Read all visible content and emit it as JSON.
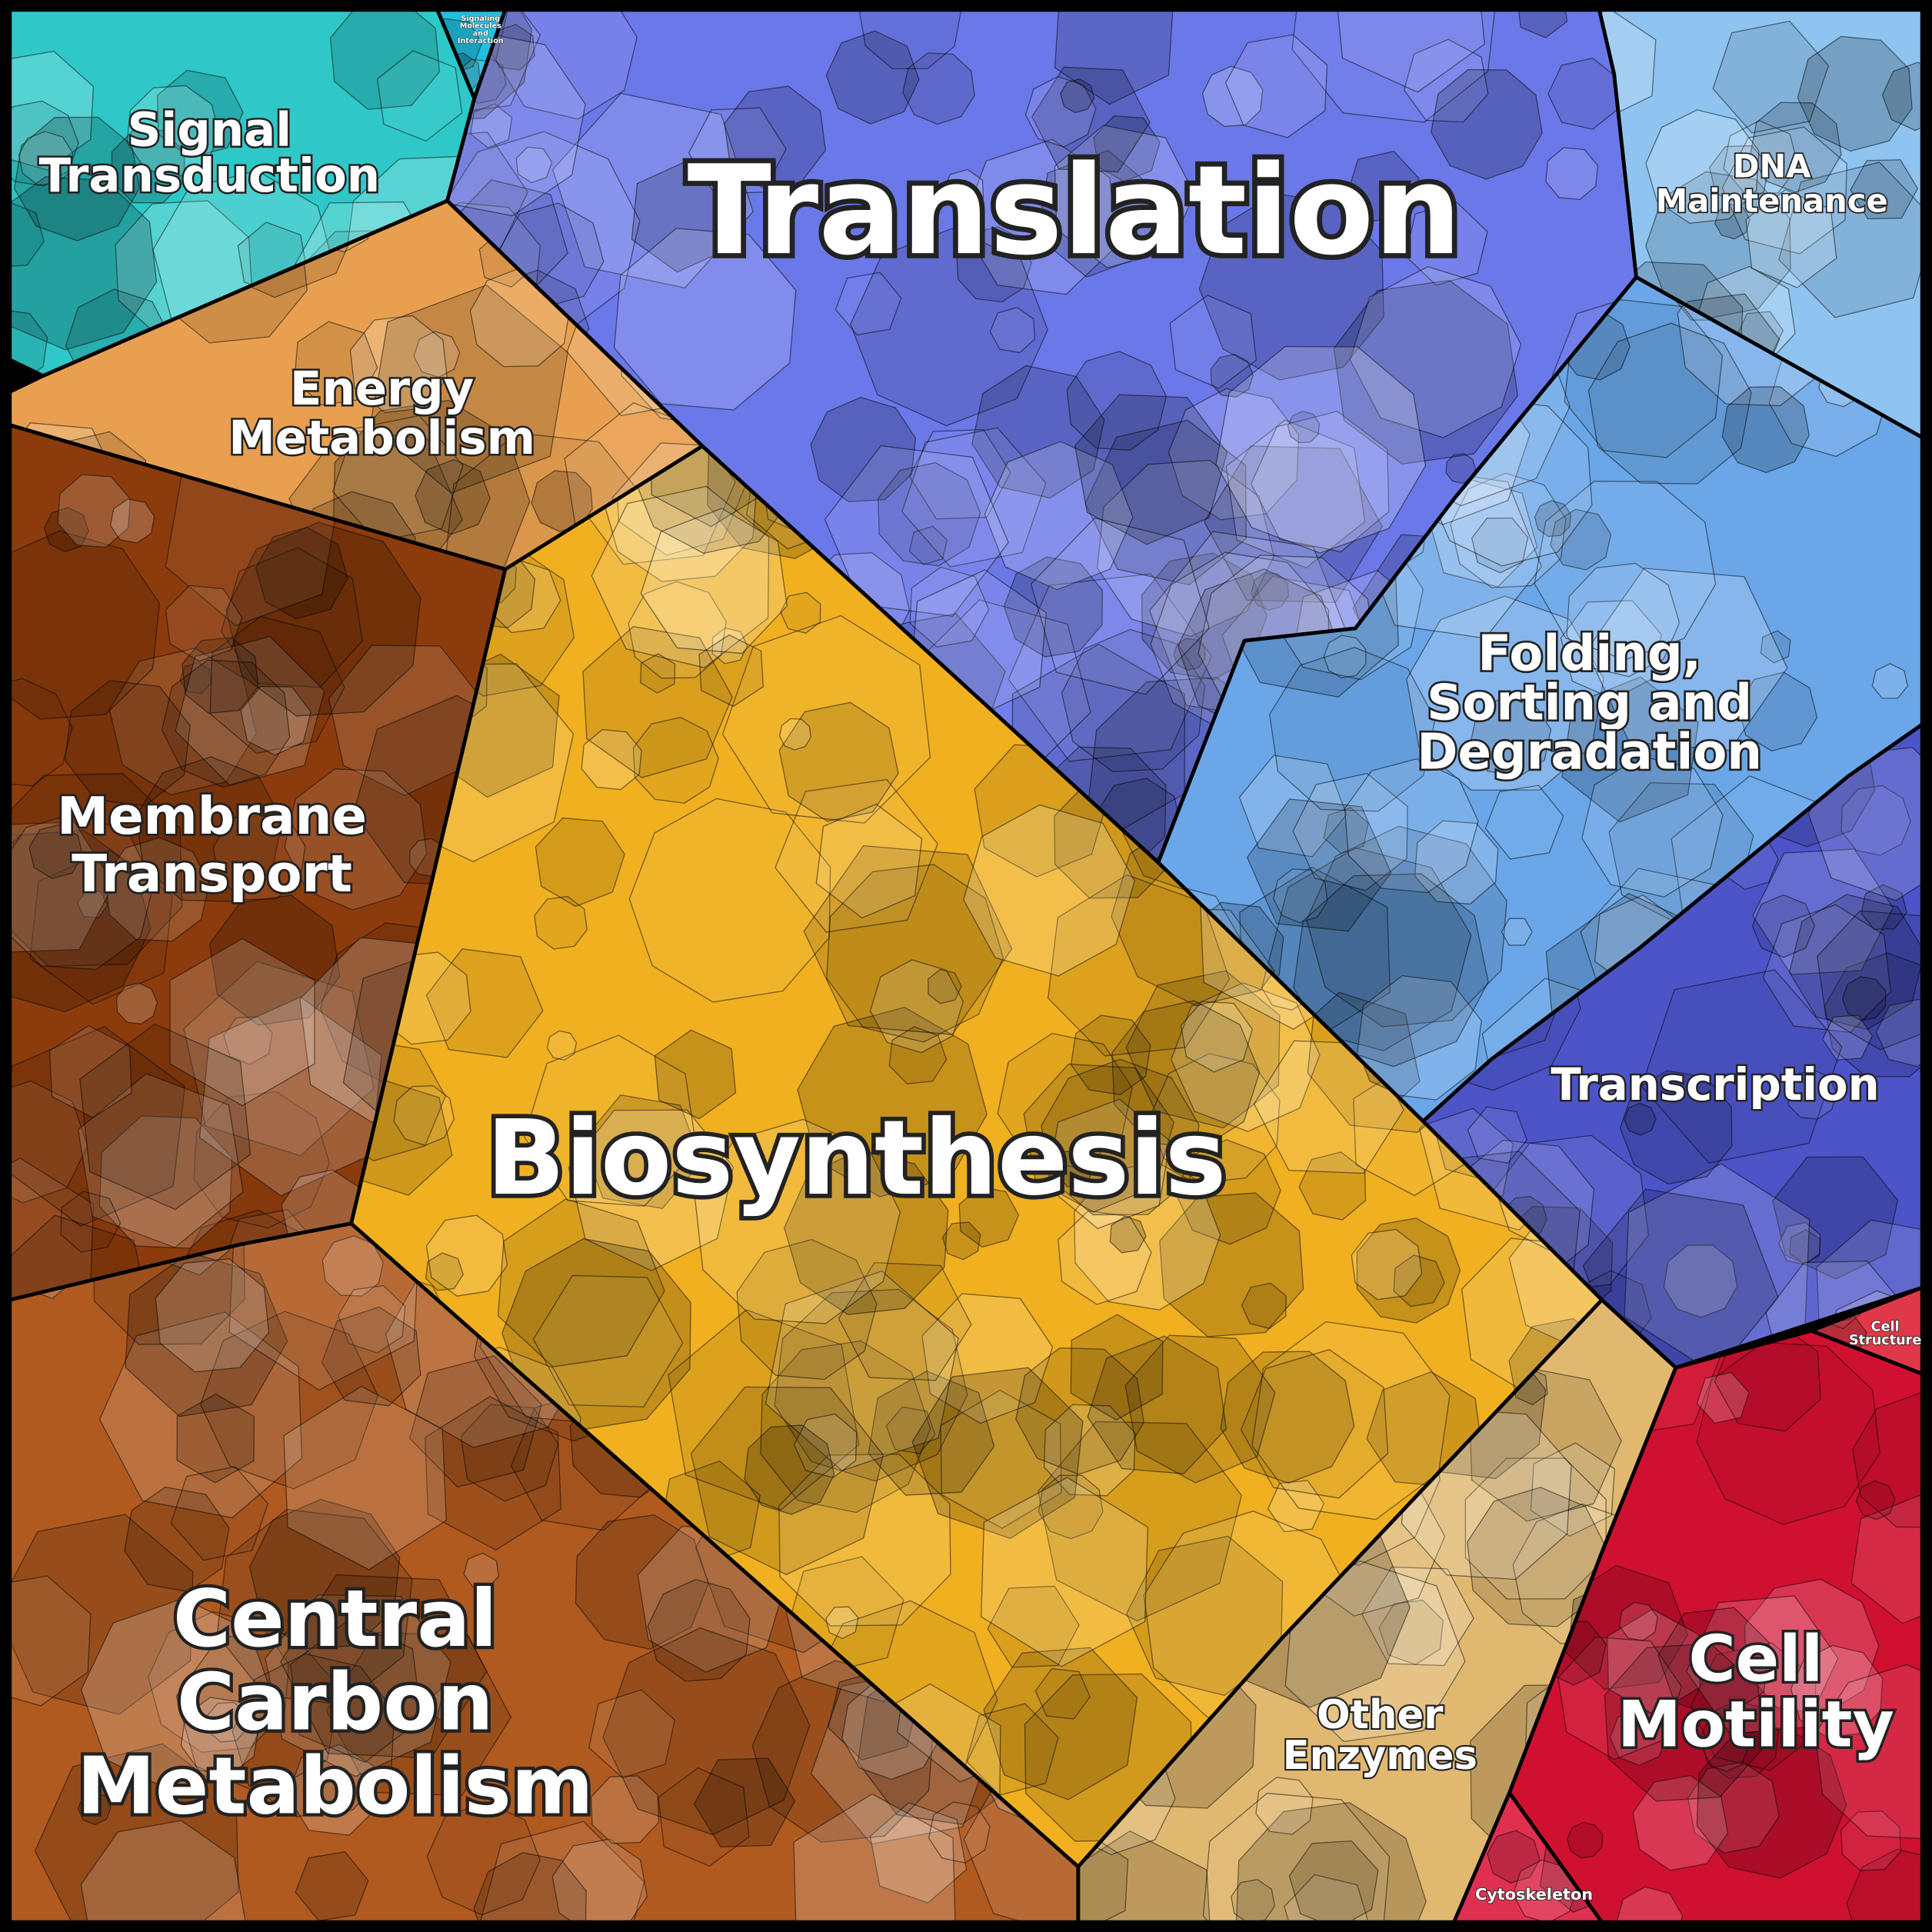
{
  "regions": [
    {
      "label": [
        "Signal",
        "Transduction"
      ],
      "color": "#2ec8c8"
    },
    {
      "label": [
        "Signaling",
        "Molecules",
        "and",
        "Interaction"
      ],
      "color": "#20c0e0"
    },
    {
      "label": [
        "Translation"
      ],
      "color": "#6b78e8"
    },
    {
      "label": [
        "DNA",
        "Maintenance"
      ],
      "color": "#8fc4f0"
    },
    {
      "label": [
        "Folding,",
        "Sorting and",
        "Degradation"
      ],
      "color": "#6aa6e8"
    },
    {
      "label": [
        "Transcription"
      ],
      "color": "#4c54c8"
    },
    {
      "label": [
        "Cell",
        "Structure"
      ],
      "color": "#e03848"
    },
    {
      "label": [
        "Cell",
        "Motility"
      ],
      "color": "#d01030"
    },
    {
      "label": [
        "Cytoskeleton"
      ],
      "color": "#e03050"
    },
    {
      "label": [
        "Other",
        "Enzymes"
      ],
      "color": "#e0b870"
    },
    {
      "label": [
        "Biosynthesis"
      ],
      "color": "#f0b020"
    },
    {
      "label": [
        "Energy",
        "Metabolism"
      ],
      "color": "#e8a050"
    },
    {
      "label": [
        "Membrane",
        "Transport"
      ],
      "color": "#8c3c0c"
    },
    {
      "label": [
        "Central",
        "Carbon",
        "Metabolism"
      ],
      "color": "#b05a20"
    }
  ]
}
